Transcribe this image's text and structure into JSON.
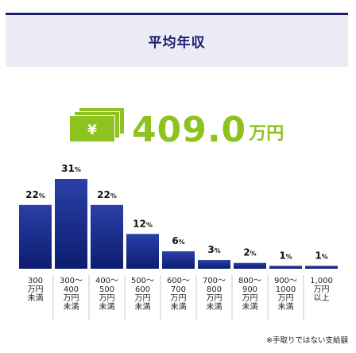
{
  "title": "平均年収",
  "summary": {
    "value": "409.0",
    "unit": "万円",
    "icon": "money-bills-icon"
  },
  "colors": {
    "bar_top": "#2a40a8",
    "bar_bottom": "#0d1c6e",
    "accent": "#8ec21f",
    "header": "#1a1f6b",
    "header_bg": "#ebebf5"
  },
  "footnote": "※手取りではない支給額",
  "chart_data": {
    "type": "bar",
    "categories": [
      [
        "300",
        "万円",
        "未満"
      ],
      [
        "300〜",
        "400",
        "万円",
        "未満"
      ],
      [
        "400〜",
        "500",
        "万円",
        "未満"
      ],
      [
        "500〜",
        "600",
        "万円",
        "未満"
      ],
      [
        "600〜",
        "700",
        "万円",
        "未満"
      ],
      [
        "700〜",
        "800",
        "万円",
        "未満"
      ],
      [
        "800〜",
        "900",
        "万円",
        "未満"
      ],
      [
        "900〜",
        "1000",
        "万円",
        "未満"
      ],
      [
        "1,000",
        "万円",
        "以上"
      ]
    ],
    "values": [
      22,
      31,
      22,
      12,
      6,
      3,
      2,
      1,
      1
    ],
    "value_labels": [
      "22",
      "31",
      "22",
      "12",
      "6",
      "3",
      "2",
      "1",
      "1"
    ],
    "value_suffix": "%",
    "ylim": [
      0,
      31
    ]
  }
}
